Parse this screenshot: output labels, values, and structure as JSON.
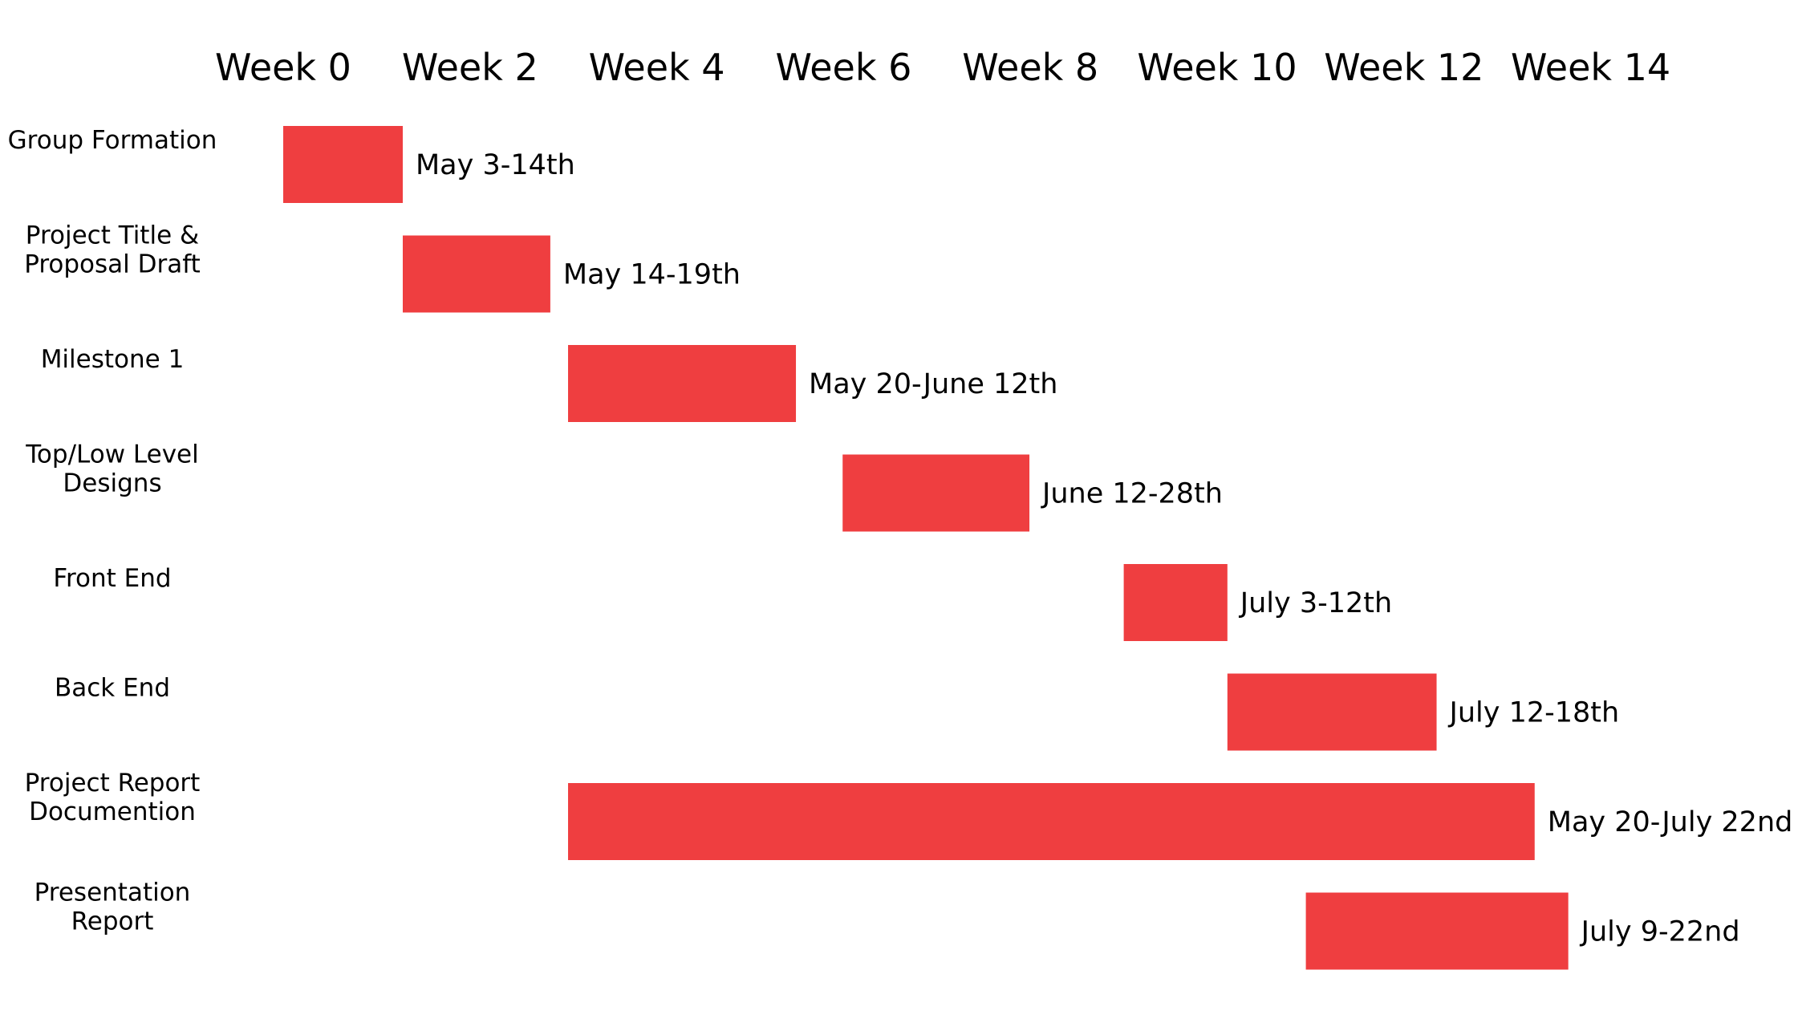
{
  "chart_data": {
    "type": "gantt",
    "x_axis": {
      "unit": "weeks",
      "range": [
        0,
        14
      ],
      "tick_labels": [
        "Week 0",
        "Week 2",
        "Week 4",
        "Week 6",
        "Week 8",
        "Week 10",
        "Week 12",
        "Week 14"
      ],
      "position": "top"
    },
    "grid": false,
    "legend": "none",
    "bar_color": "#ef3e40",
    "tasks": [
      {
        "name": [
          "Group Formation"
        ],
        "start": 0,
        "end": 1.28,
        "label": "May 3-14th"
      },
      {
        "name": [
          "Project Title &",
          "Proposal Draft"
        ],
        "start": 1.28,
        "end": 2.86,
        "label": "May 14-19th"
      },
      {
        "name": [
          "Milestone 1"
        ],
        "start": 3.05,
        "end": 5.49,
        "label": "May 20-June 12th"
      },
      {
        "name": [
          "Top/Low Level",
          "Designs"
        ],
        "start": 5.99,
        "end": 7.99,
        "label": "June 12-28th"
      },
      {
        "name": [
          "Front End"
        ],
        "start": 9.0,
        "end": 10.11,
        "label": "July 3-12th"
      },
      {
        "name": [
          "Back End"
        ],
        "start": 10.11,
        "end": 12.35,
        "label": "July 12-18th"
      },
      {
        "name": [
          "Project Report",
          "Documention"
        ],
        "start": 3.05,
        "end": 13.4,
        "label": "May 20-July 22nd"
      },
      {
        "name": [
          "Presentation",
          "Report"
        ],
        "start": 10.95,
        "end": 13.76,
        "label": "July 9-22nd"
      }
    ]
  }
}
